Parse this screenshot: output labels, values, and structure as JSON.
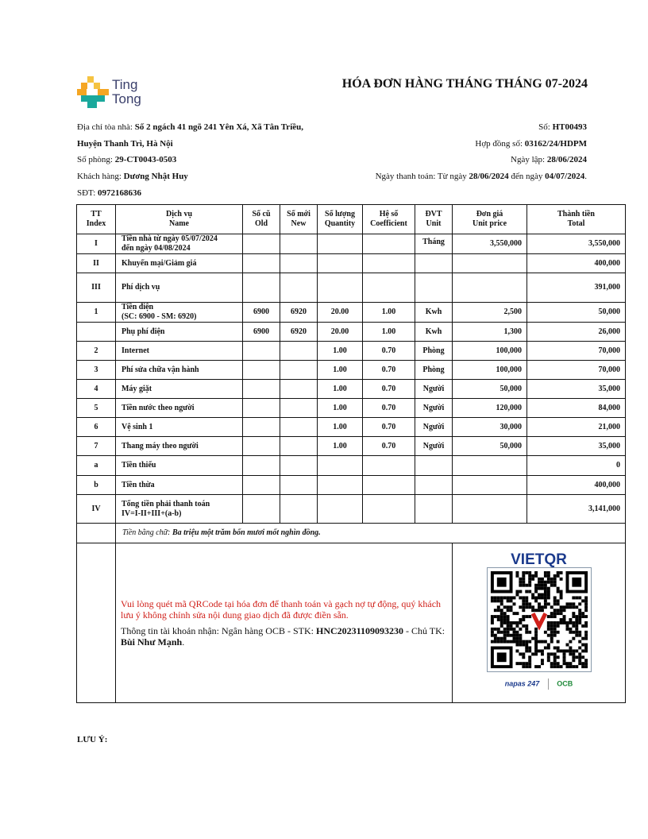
{
  "logo": {
    "line1": "Ting",
    "line2": "Tong"
  },
  "title": "HÓA ĐƠN HÀNG THÁNG THÁNG 07-2024",
  "info": {
    "address_label": "Địa chỉ tòa nhà: ",
    "address_1": "Số 2 ngách 41 ngõ 241 Yên Xá, Xã Tân Triều,",
    "address_2": "Huyện Thanh Trì, Hà Nội",
    "room_label": "Số phòng: ",
    "room": "29-CT0043-0503",
    "customer_label": "Khách hàng: ",
    "customer": "Dương Nhật Huy",
    "phone_label": "SĐT: ",
    "phone": "0972168636",
    "no_label": "Số: ",
    "no": "HT00493",
    "contract_label": "Hợp đồng số: ",
    "contract": "03162/24/HDPM",
    "created_label": "Ngày lập: ",
    "created": "28/06/2024",
    "pay_label": "Ngày thanh toán: Từ ngày ",
    "pay_from": "28/06/2024",
    "pay_mid": " đến ngày ",
    "pay_to": "04/07/2024",
    "pay_end": "."
  },
  "headers": [
    [
      "TT",
      "Index"
    ],
    [
      "Dịch vụ",
      "Name"
    ],
    [
      "Số cũ",
      "Old"
    ],
    [
      "Số mới",
      "New"
    ],
    [
      "Số lượng",
      "Quantity"
    ],
    [
      "Hệ số",
      "Coefficient"
    ],
    [
      "ĐVT",
      "Unit"
    ],
    [
      "Đơn giá",
      "Unit price"
    ],
    [
      "Thành tiền",
      "Total"
    ]
  ],
  "rows": [
    [
      "I",
      "Tiền nhà từ ngày 05/07/2024\nđến ngày 04/08/2024",
      "",
      "",
      "",
      "",
      "Tháng",
      "3,550,000",
      "3,550,000"
    ],
    [
      "II",
      "Khuyến mại/Giảm giá",
      "",
      "",
      "",
      "",
      "",
      "",
      "400,000"
    ],
    [
      "III",
      "Phí dịch vụ",
      "",
      "",
      "",
      "",
      "",
      "",
      "391,000"
    ],
    [
      "1",
      "Tiền điện\n(SC: 6900 - SM: 6920)",
      "6900",
      "6920",
      "20.00",
      "1.00",
      "Kwh",
      "2,500",
      "50,000"
    ],
    [
      "",
      "Phụ phí điện",
      "6900",
      "6920",
      "20.00",
      "1.00",
      "Kwh",
      "1,300",
      "26,000"
    ],
    [
      "2",
      "Internet",
      "",
      "",
      "1.00",
      "0.70",
      "Phòng",
      "100,000",
      "70,000"
    ],
    [
      "3",
      "Phí sửa chữa vận hành",
      "",
      "",
      "1.00",
      "0.70",
      "Phòng",
      "100,000",
      "70,000"
    ],
    [
      "4",
      "Máy giặt",
      "",
      "",
      "1.00",
      "0.70",
      "Người",
      "50,000",
      "35,000"
    ],
    [
      "5",
      "Tiền nước theo người",
      "",
      "",
      "1.00",
      "0.70",
      "Người",
      "120,000",
      "84,000"
    ],
    [
      "6",
      "Vệ sinh 1",
      "",
      "",
      "1.00",
      "0.70",
      "Người",
      "30,000",
      "21,000"
    ],
    [
      "7",
      "Thang máy theo người",
      "",
      "",
      "1.00",
      "0.70",
      "Người",
      "50,000",
      "35,000"
    ],
    [
      "a",
      "Tiền thiếu",
      "",
      "",
      "",
      "",
      "",
      "",
      "0"
    ],
    [
      "b",
      "Tiền thừa",
      "",
      "",
      "",
      "",
      "",
      "",
      "400,000"
    ],
    [
      "IV",
      "Tổng tiền phải thanh toán\nIV=I-II+III+(a-b)",
      "",
      "",
      "",
      "",
      "",
      "",
      "3,141,000"
    ]
  ],
  "words_label": "Tiền bằng chữ: ",
  "words": "Ba triệu một trăm bốn mươi mốt nghìn đồng.",
  "payment": {
    "notice": "Vui lòng quét mã QRCode tại hóa đơn để thanh toán và gạch nợ tự động, quý khách lưu ý không chỉnh sửa nội dung giao dịch đã được điền sẵn.",
    "account_label": "Thông tin tài khoản nhận: Ngân hàng OCB - STK: ",
    "account": "HNC20231109093230",
    "owner_label": " - Chủ TK: ",
    "owner": "Bùi Như Mạnh",
    "end": "."
  },
  "qr": {
    "brand": "VIETQR",
    "napas": "napas 247",
    "bank": "OCB"
  },
  "note": "LƯU Ý:",
  "colors": {
    "red": "#d0201a",
    "logo_orange": "#f5a623",
    "logo_teal": "#1aa89c",
    "logo_text": "#3a3f6b"
  }
}
